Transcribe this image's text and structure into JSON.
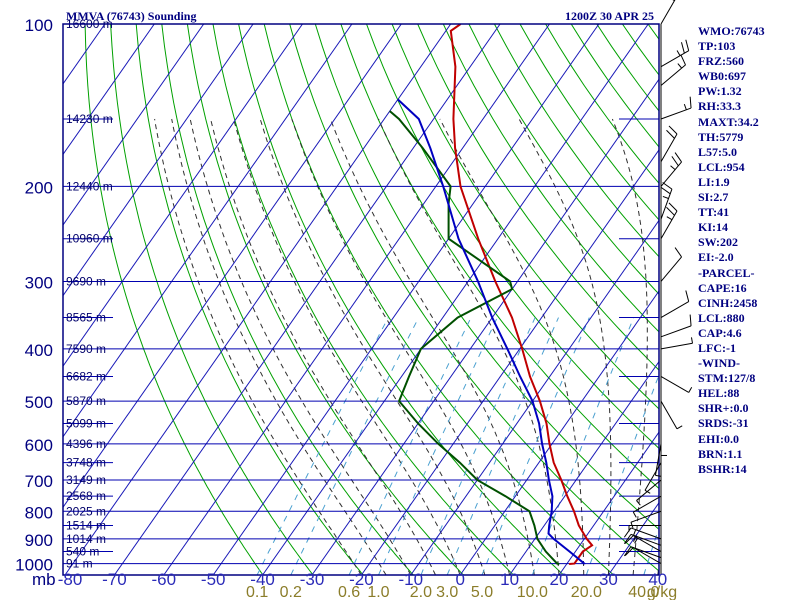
{
  "header": {
    "title": "MMVA (76743) Sounding",
    "datetime": "1200Z 30 APR 25"
  },
  "indices": [
    "WMO:76743",
    "TP:103",
    "FRZ:560",
    "WB0:697",
    "PW:1.32",
    "RH:33.3",
    "MAXT:34.2",
    "TH:5779",
    "L57:5.0",
    "LCL:954",
    "LI:1.9",
    "SI:2.7",
    "TT:41",
    "KI:14",
    "SW:202",
    "EI:-2.0",
    "-PARCEL-",
    "CAPE:16",
    "CINH:2458",
    "LCL:880",
    "CAP:4.6",
    "LFC:-1",
    "-WIND-",
    "STM:127/8",
    "HEL:88",
    "SHR+:0.0",
    "SRDS:-31",
    "EHI:0.0",
    "BRN:1.1",
    "BSHR:14"
  ],
  "colors": {
    "frame": "#000080",
    "isobar": "#0000b0",
    "isotherm": "#1a1ab8",
    "isotherm_label": "#2a2ab8",
    "dry_adiabat": "#00a000",
    "moist_adiabat": "#303030",
    "mixing_ratio": "#4aa0d0",
    "mixing_label": "#8b7d2a",
    "height_label": "#00006a",
    "temperature": "#c00000",
    "dewpoint": "#005000",
    "parcel": "#0000c0",
    "wind": "#000000"
  },
  "chart_data": {
    "type": "skew-t log-p sounding",
    "title": "MMVA (76743) Sounding",
    "xlabel": "",
    "ylabel": "mb",
    "pressure_ticks_mb": [
      100,
      200,
      300,
      400,
      500,
      600,
      700,
      800,
      900,
      1000
    ],
    "pressure_labels": [
      "100",
      "200",
      "300",
      "400",
      "500",
      "600",
      "700",
      "800",
      "900",
      "1000"
    ],
    "pressure_axis_label": "mb",
    "pressure_range_mb": [
      100,
      1050
    ],
    "temperature_ticks_c": [
      -80,
      -70,
      -60,
      -50,
      -40,
      -30,
      -20,
      -10,
      0,
      10,
      20,
      30,
      40
    ],
    "temperature_labels": [
      "-80",
      "-70",
      "-60",
      "-50",
      "-40",
      "-30",
      "-20",
      "-10",
      "0",
      "10",
      "20",
      "30",
      "40"
    ],
    "height_labels": [
      {
        "p": 100,
        "text": "16600 m"
      },
      {
        "p": 150,
        "text": "14230 m"
      },
      {
        "p": 200,
        "text": "12440 m"
      },
      {
        "p": 250,
        "text": "10960 m"
      },
      {
        "p": 300,
        "text": "9690 m"
      },
      {
        "p": 350,
        "text": "8565 m"
      },
      {
        "p": 400,
        "text": "7590 m"
      },
      {
        "p": 450,
        "text": "6682 m"
      },
      {
        "p": 500,
        "text": "5870 m"
      },
      {
        "p": 550,
        "text": "5099 m"
      },
      {
        "p": 600,
        "text": "4396 m"
      },
      {
        "p": 650,
        "text": "3748 m"
      },
      {
        "p": 700,
        "text": "3149 m"
      },
      {
        "p": 750,
        "text": "2568 m"
      },
      {
        "p": 800,
        "text": "2025 m"
      },
      {
        "p": 850,
        "text": "1514 m"
      },
      {
        "p": 900,
        "text": "1014 m"
      },
      {
        "p": 950,
        "text": "540 m"
      },
      {
        "p": 1000,
        "text": "91 m"
      }
    ],
    "mixing_ratio_g_kg": [
      0.1,
      0.2,
      0.6,
      1.0,
      2.0,
      3.0,
      5.0,
      10.0,
      20.0,
      40.0
    ],
    "mixing_ratio_labels": [
      "0.1",
      "0.2",
      "0.6",
      "1.0",
      "2.0",
      "3.0",
      "5.0",
      "10.0",
      "20.0",
      "40.0"
    ],
    "mixing_ratio_unit": "g/kg",
    "series": [
      {
        "key": "temperature",
        "points": [
          [
            1002,
            20.5
          ],
          [
            1000,
            21.5
          ],
          [
            950,
            21.5
          ],
          [
            925,
            22.5
          ],
          [
            900,
            20.5
          ],
          [
            850,
            17.0
          ],
          [
            800,
            14.0
          ],
          [
            750,
            10.5
          ],
          [
            700,
            7.0
          ],
          [
            650,
            3.0
          ],
          [
            600,
            -0.5
          ],
          [
            550,
            -4.0
          ],
          [
            500,
            -8.5
          ],
          [
            450,
            -14.0
          ],
          [
            400,
            -19.5
          ],
          [
            350,
            -26.0
          ],
          [
            300,
            -34.5
          ],
          [
            250,
            -44.0
          ],
          [
            200,
            -55.0
          ],
          [
            170,
            -61.5
          ],
          [
            150,
            -66.0
          ],
          [
            120,
            -73.0
          ],
          [
            103,
            -79.0
          ],
          [
            100,
            -78.0
          ]
        ]
      },
      {
        "key": "dewpoint",
        "points": [
          [
            1002,
            18.5
          ],
          [
            1000,
            18.0
          ],
          [
            950,
            14.0
          ],
          [
            900,
            10.5
          ],
          [
            850,
            8.0
          ],
          [
            800,
            5.0
          ],
          [
            750,
            -2.0
          ],
          [
            700,
            -10.0
          ],
          [
            650,
            -16.0
          ],
          [
            600,
            -23.0
          ],
          [
            550,
            -30.0
          ],
          [
            500,
            -37.0
          ],
          [
            450,
            -38.5
          ],
          [
            400,
            -40.0
          ],
          [
            350,
            -37.0
          ],
          [
            310,
            -30.0
          ],
          [
            300,
            -31.5
          ],
          [
            250,
            -50.0
          ],
          [
            215,
            -55.0
          ],
          [
            200,
            -57.0
          ],
          [
            170,
            -68.0
          ],
          [
            150,
            -77.0
          ],
          [
            145,
            -80.0
          ]
        ]
      },
      {
        "key": "parcel",
        "points": [
          [
            1002,
            23.5
          ],
          [
            1000,
            23.5
          ],
          [
            950,
            18.8
          ],
          [
            900,
            13.8
          ],
          [
            880,
            12.0
          ],
          [
            850,
            11.0
          ],
          [
            800,
            9.5
          ],
          [
            750,
            7.5
          ],
          [
            700,
            4.5
          ],
          [
            650,
            1.5
          ],
          [
            600,
            -2.0
          ],
          [
            550,
            -5.5
          ],
          [
            500,
            -10.0
          ],
          [
            450,
            -16.0
          ],
          [
            400,
            -22.5
          ],
          [
            350,
            -30.0
          ],
          [
            300,
            -38.0
          ],
          [
            250,
            -48.0
          ],
          [
            200,
            -58.5
          ],
          [
            170,
            -66.5
          ],
          [
            150,
            -73.0
          ],
          [
            138,
            -80.0
          ]
        ]
      }
    ],
    "wind_barbs": [
      {
        "p": 1000,
        "dir": 300,
        "spd": 10
      },
      {
        "p": 975,
        "dir": 290,
        "spd": 10
      },
      {
        "p": 950,
        "dir": 300,
        "spd": 15
      },
      {
        "p": 925,
        "dir": 290,
        "spd": 15
      },
      {
        "p": 900,
        "dir": 290,
        "spd": 15
      },
      {
        "p": 850,
        "dir": 270,
        "spd": 5
      },
      {
        "p": 800,
        "dir": 250,
        "spd": 5
      },
      {
        "p": 750,
        "dir": 240,
        "spd": 5
      },
      {
        "p": 700,
        "dir": 230,
        "spd": 5
      },
      {
        "p": 650,
        "dir": 210,
        "spd": 5
      },
      {
        "p": 600,
        "dir": 190,
        "spd": 5
      },
      {
        "p": 550,
        "dir": 180,
        "spd": 5
      },
      {
        "p": 500,
        "dir": 150,
        "spd": 5
      },
      {
        "p": 450,
        "dir": 120,
        "spd": 5
      },
      {
        "p": 400,
        "dir": 80,
        "spd": 5
      },
      {
        "p": 380,
        "dir": 70,
        "spd": 10
      },
      {
        "p": 350,
        "dir": 60,
        "spd": 10
      },
      {
        "p": 300,
        "dir": 40,
        "spd": 10
      },
      {
        "p": 250,
        "dir": 30,
        "spd": 25
      },
      {
        "p": 230,
        "dir": 20,
        "spd": 25
      },
      {
        "p": 200,
        "dir": 40,
        "spd": 25
      },
      {
        "p": 180,
        "dir": 30,
        "spd": 20
      },
      {
        "p": 150,
        "dir": 70,
        "spd": 15
      },
      {
        "p": 130,
        "dir": 50,
        "spd": 15
      },
      {
        "p": 120,
        "dir": 60,
        "spd": 25
      },
      {
        "p": 100,
        "dir": 30,
        "spd": 15
      }
    ]
  }
}
